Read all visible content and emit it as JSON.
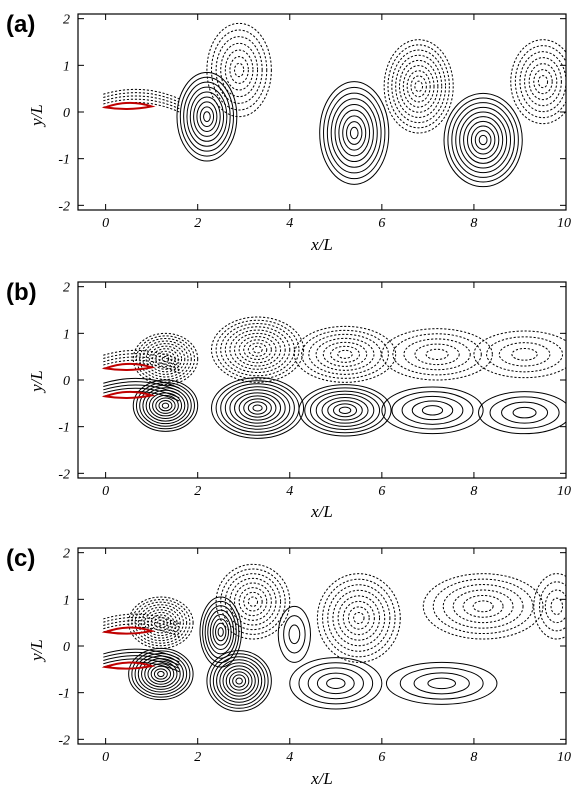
{
  "chart_data": [
    {
      "type": "contour",
      "panel_label": "(a)",
      "xlabel": "x/L",
      "ylabel": "y/L",
      "xlim": [
        -0.6,
        10
      ],
      "ylim": [
        -2.1,
        2.1
      ],
      "x_ticks": [
        "0",
        "2",
        "4",
        "6",
        "8",
        "10"
      ],
      "y_ticks": [
        "2",
        "1",
        "0",
        "-1",
        "-2"
      ],
      "foils": [
        [
          0.0,
          0.1
        ]
      ],
      "vortices": [
        {
          "x": 2.2,
          "y": -0.1,
          "rx": 0.65,
          "ry": 0.95,
          "sense": "negative",
          "rings": 9
        },
        {
          "x": 2.9,
          "y": 0.9,
          "rx": 0.7,
          "ry": 1.0,
          "sense": "positive",
          "rings": 7
        },
        {
          "x": 5.4,
          "y": -0.45,
          "rx": 0.75,
          "ry": 1.1,
          "sense": "negative",
          "rings": 9
        },
        {
          "x": 6.8,
          "y": 0.55,
          "rx": 0.75,
          "ry": 1.0,
          "sense": "positive",
          "rings": 9
        },
        {
          "x": 8.2,
          "y": -0.6,
          "rx": 0.85,
          "ry": 1.0,
          "sense": "negative",
          "rings": 10
        },
        {
          "x": 9.5,
          "y": 0.65,
          "rx": 0.7,
          "ry": 0.9,
          "sense": "positive",
          "rings": 7
        }
      ]
    },
    {
      "type": "contour",
      "panel_label": "(b)",
      "xlabel": "x/L",
      "ylabel": "y/L",
      "xlim": [
        -0.6,
        10
      ],
      "ylim": [
        -2.1,
        2.1
      ],
      "x_ticks": [
        "0",
        "2",
        "4",
        "6",
        "8",
        "10"
      ],
      "y_ticks": [
        "2",
        "1",
        "0",
        "-1",
        "-2"
      ],
      "foils": [
        [
          0.0,
          0.25
        ],
        [
          0.0,
          -0.35
        ]
      ],
      "vortices": [
        {
          "x": 1.3,
          "y": 0.45,
          "rx": 0.7,
          "ry": 0.55,
          "sense": "positive",
          "rings": 10
        },
        {
          "x": 1.3,
          "y": -0.55,
          "rx": 0.7,
          "ry": 0.55,
          "sense": "negative",
          "rings": 10
        },
        {
          "x": 3.3,
          "y": 0.65,
          "rx": 1.0,
          "ry": 0.7,
          "sense": "positive",
          "rings": 10
        },
        {
          "x": 3.3,
          "y": -0.6,
          "rx": 1.0,
          "ry": 0.65,
          "sense": "negative",
          "rings": 10
        },
        {
          "x": 5.2,
          "y": 0.55,
          "rx": 1.1,
          "ry": 0.6,
          "sense": "positive",
          "rings": 7
        },
        {
          "x": 5.2,
          "y": -0.65,
          "rx": 1.0,
          "ry": 0.55,
          "sense": "negative",
          "rings": 8
        },
        {
          "x": 7.2,
          "y": 0.55,
          "rx": 1.2,
          "ry": 0.55,
          "sense": "positive",
          "rings": 5
        },
        {
          "x": 7.1,
          "y": -0.65,
          "rx": 1.1,
          "ry": 0.5,
          "sense": "negative",
          "rings": 5
        },
        {
          "x": 9.1,
          "y": 0.55,
          "rx": 1.1,
          "ry": 0.5,
          "sense": "positive",
          "rings": 4
        },
        {
          "x": 9.1,
          "y": -0.7,
          "rx": 1.0,
          "ry": 0.45,
          "sense": "negative",
          "rings": 4
        }
      ]
    },
    {
      "type": "contour",
      "panel_label": "(c)",
      "xlabel": "x/L",
      "ylabel": "y/L",
      "xlim": [
        -0.6,
        10
      ],
      "ylim": [
        -2.1,
        2.1
      ],
      "x_ticks": [
        "0",
        "2",
        "4",
        "6",
        "8",
        "10"
      ],
      "y_ticks": [
        "2",
        "1",
        "0",
        "-1",
        "-2"
      ],
      "foils": [
        [
          0.0,
          0.3
        ],
        [
          0.0,
          -0.45
        ]
      ],
      "vortices": [
        {
          "x": 1.2,
          "y": 0.5,
          "rx": 0.7,
          "ry": 0.55,
          "sense": "positive",
          "rings": 10
        },
        {
          "x": 1.2,
          "y": -0.6,
          "rx": 0.7,
          "ry": 0.55,
          "sense": "negative",
          "rings": 10
        },
        {
          "x": 2.5,
          "y": 0.3,
          "rx": 0.45,
          "ry": 0.75,
          "sense": "negative",
          "rings": 8
        },
        {
          "x": 3.2,
          "y": 0.95,
          "rx": 0.8,
          "ry": 0.8,
          "sense": "positive",
          "rings": 8
        },
        {
          "x": 2.9,
          "y": -0.75,
          "rx": 0.7,
          "ry": 0.65,
          "sense": "negative",
          "rings": 10
        },
        {
          "x": 4.1,
          "y": 0.25,
          "rx": 0.35,
          "ry": 0.6,
          "sense": "negative",
          "rings": 3
        },
        {
          "x": 5.5,
          "y": 0.6,
          "rx": 0.9,
          "ry": 0.95,
          "sense": "positive",
          "rings": 8
        },
        {
          "x": 5.0,
          "y": -0.8,
          "rx": 1.0,
          "ry": 0.55,
          "sense": "negative",
          "rings": 5
        },
        {
          "x": 8.2,
          "y": 0.85,
          "rx": 1.3,
          "ry": 0.7,
          "sense": "positive",
          "rings": 6
        },
        {
          "x": 7.3,
          "y": -0.8,
          "rx": 1.2,
          "ry": 0.45,
          "sense": "negative",
          "rings": 4
        },
        {
          "x": 9.8,
          "y": 0.85,
          "rx": 0.5,
          "ry": 0.7,
          "sense": "positive",
          "rings": 4
        }
      ]
    }
  ],
  "colors": {
    "contour": "#000000",
    "body": "#c00000",
    "background": "#ffffff"
  }
}
